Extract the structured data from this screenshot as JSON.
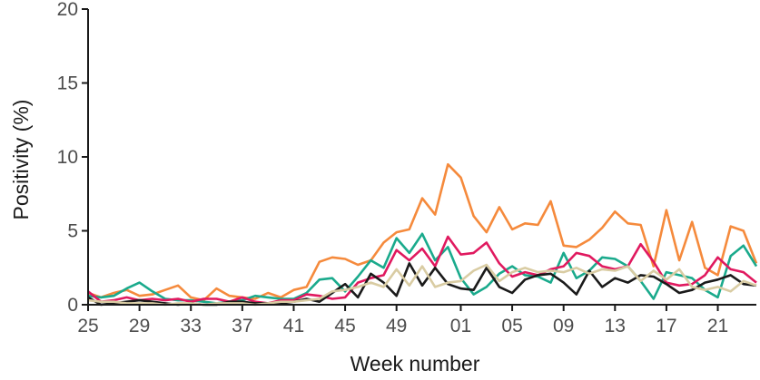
{
  "chart_data": {
    "type": "line",
    "title": "",
    "xlabel": "Week number",
    "ylabel": "Positivity (%)",
    "ylim": [
      0,
      20
    ],
    "yticks": [
      0,
      5,
      10,
      15,
      20
    ],
    "xtick_labels": [
      "25",
      "29",
      "33",
      "37",
      "41",
      "45",
      "49",
      "01",
      "05",
      "09",
      "13",
      "17",
      "21"
    ],
    "x": [
      "25",
      "26",
      "27",
      "28",
      "29",
      "30",
      "31",
      "32",
      "33",
      "34",
      "35",
      "36",
      "37",
      "38",
      "39",
      "40",
      "41",
      "42",
      "43",
      "44",
      "45",
      "46",
      "47",
      "48",
      "49",
      "50",
      "51",
      "52",
      "53",
      "01",
      "02",
      "03",
      "04",
      "05",
      "06",
      "07",
      "08",
      "09",
      "10",
      "11",
      "12",
      "13",
      "14",
      "15",
      "16",
      "17",
      "18",
      "19",
      "20",
      "21",
      "22",
      "23",
      "24"
    ],
    "grid": false,
    "legend": "none",
    "series": [
      {
        "color": "#f58a3c",
        "values": [
          0.8,
          0.5,
          0.8,
          1.0,
          0.6,
          0.7,
          1.0,
          1.3,
          0.5,
          0.3,
          1.1,
          0.6,
          0.5,
          0.4,
          0.8,
          0.5,
          1.0,
          1.2,
          2.9,
          3.2,
          3.1,
          2.7,
          3.0,
          4.2,
          4.9,
          5.1,
          7.2,
          6.1,
          9.5,
          8.6,
          6.0,
          4.9,
          6.6,
          5.1,
          5.5,
          5.4,
          7.0,
          4.0,
          3.9,
          4.4,
          5.2,
          6.3,
          5.5,
          5.4,
          2.6,
          6.4,
          3.0,
          5.6,
          2.5,
          2.0,
          5.3,
          5.0,
          2.8
        ]
      },
      {
        "color": "#1aaa8c",
        "values": [
          0.6,
          0.5,
          0.6,
          1.1,
          1.5,
          0.9,
          0.4,
          0.3,
          0.3,
          0.2,
          0.1,
          0.2,
          0.3,
          0.6,
          0.5,
          0.4,
          0.4,
          0.8,
          1.7,
          1.8,
          0.9,
          1.9,
          3.0,
          2.5,
          4.5,
          3.5,
          4.8,
          3.0,
          3.9,
          1.8,
          0.7,
          1.2,
          2.1,
          2.6,
          2.0,
          1.9,
          1.5,
          3.5,
          1.8,
          2.3,
          3.2,
          3.1,
          2.6,
          1.6,
          0.4,
          2.2,
          2.0,
          1.8,
          1.0,
          0.5,
          3.3,
          4.0,
          2.6
        ]
      },
      {
        "color": "#e0195f",
        "values": [
          0.9,
          0.2,
          0.3,
          0.5,
          0.3,
          0.4,
          0.3,
          0.4,
          0.2,
          0.4,
          0.4,
          0.2,
          0.5,
          0.2,
          0.1,
          0.3,
          0.3,
          0.7,
          0.6,
          0.4,
          0.5,
          1.5,
          1.8,
          2.0,
          3.7,
          3.0,
          3.8,
          2.6,
          4.6,
          3.4,
          3.5,
          4.2,
          2.8,
          1.9,
          2.2,
          2.0,
          2.4,
          2.6,
          3.5,
          3.3,
          2.6,
          2.4,
          2.6,
          4.1,
          2.9,
          1.5,
          1.3,
          1.4,
          2.0,
          3.2,
          2.4,
          2.2,
          1.5
        ]
      },
      {
        "color": "#1a1a1a",
        "values": [
          0.5,
          0.0,
          0.1,
          0.2,
          0.3,
          0.2,
          0.1,
          0.0,
          0.1,
          0.0,
          0.0,
          0.2,
          0.2,
          0.1,
          0.1,
          0.1,
          0.2,
          0.4,
          0.2,
          0.8,
          1.4,
          0.5,
          2.1,
          1.5,
          0.6,
          2.8,
          1.3,
          2.5,
          1.4,
          1.1,
          1.0,
          2.5,
          1.2,
          0.8,
          1.7,
          2.0,
          2.1,
          1.5,
          0.7,
          2.3,
          1.2,
          1.8,
          1.5,
          2.0,
          1.9,
          1.4,
          0.8,
          1.0,
          1.5,
          1.7,
          2.0,
          1.4,
          1.3
        ]
      },
      {
        "color": "#d9cca3",
        "values": [
          0.3,
          0.2,
          0.2,
          0.1,
          0.1,
          0.1,
          0.0,
          0.1,
          0.1,
          0.0,
          0.1,
          0.1,
          0.1,
          0.0,
          0.1,
          0.2,
          0.2,
          0.3,
          0.4,
          0.9,
          1.0,
          1.2,
          1.5,
          1.2,
          2.4,
          1.3,
          2.6,
          1.2,
          1.5,
          1.6,
          2.3,
          2.7,
          1.6,
          2.2,
          2.5,
          2.2,
          2.3,
          2.2,
          2.5,
          2.1,
          2.4,
          2.3,
          2.6,
          1.6,
          2.3,
          1.7,
          2.4,
          1.2,
          1.0,
          1.2,
          0.9,
          1.6,
          1.3
        ]
      }
    ]
  }
}
